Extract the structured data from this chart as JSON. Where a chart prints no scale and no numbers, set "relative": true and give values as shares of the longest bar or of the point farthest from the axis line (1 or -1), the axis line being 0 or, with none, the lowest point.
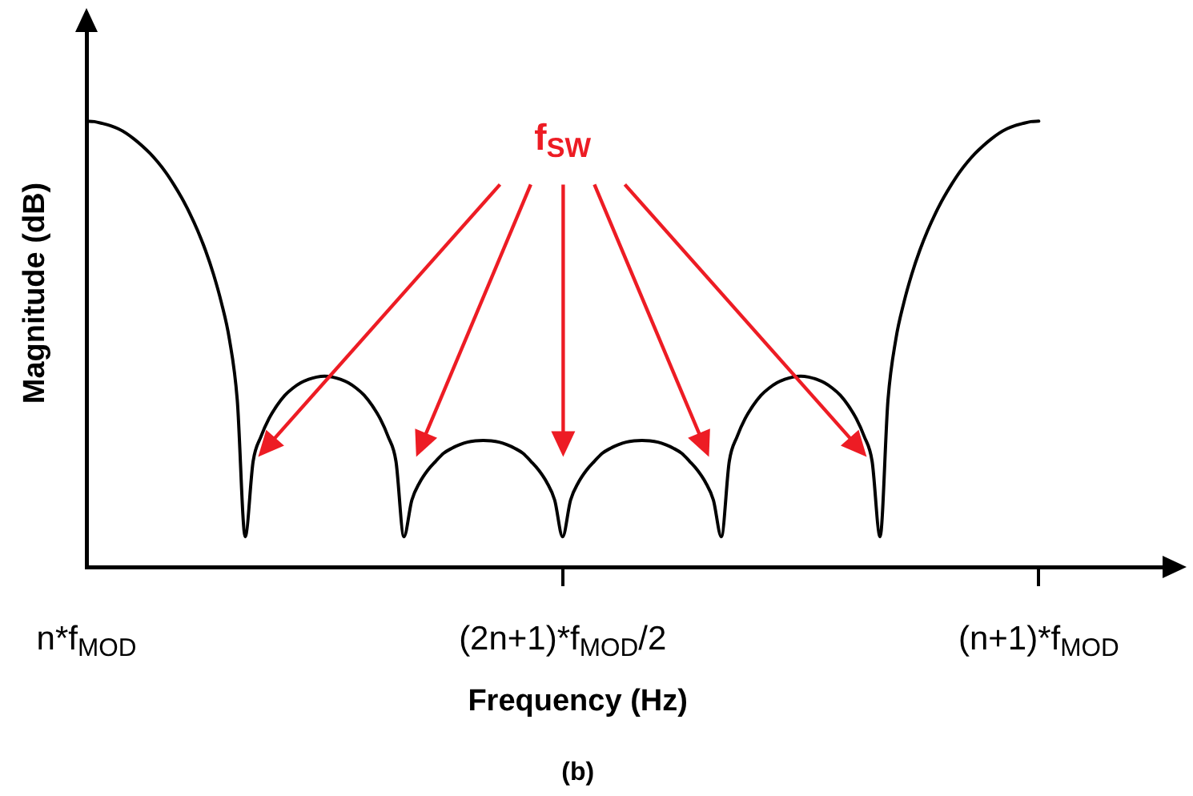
{
  "chart_data": {
    "type": "line",
    "xlabel": "Frequency (Hz)",
    "ylabel": "Magnitude (dB)",
    "relative": true,
    "annotations": [
      "f$_{SW}$",
      "(b)"
    ],
    "categories": [
      "n*f$_{MOD}$",
      null,
      null,
      null,
      null,
      null,
      null,
      null,
      null,
      null,
      null,
      null,
      null,
      null,
      null,
      null,
      null,
      null,
      null,
      null,
      null,
      null,
      null,
      null,
      null,
      null,
      null,
      null,
      null,
      null,
      null,
      null,
      null,
      null,
      null,
      null,
      null,
      null,
      null,
      null,
      null,
      null,
      null,
      null,
      null,
      null,
      null,
      null,
      null,
      null,
      null,
      null,
      null,
      null,
      null,
      null,
      null,
      null,
      null,
      null,
      "(2n+1)*f$_{MOD}$/2",
      null,
      null,
      null,
      null,
      null,
      null,
      null,
      null,
      null,
      null,
      null,
      null,
      null,
      null,
      null,
      null,
      null,
      null,
      null,
      null,
      null,
      null,
      null,
      null,
      null,
      null,
      null,
      null,
      null,
      null,
      null,
      null,
      null,
      null,
      null,
      null,
      null,
      null,
      null,
      null,
      null,
      null,
      null,
      null,
      null,
      null,
      null,
      null,
      null,
      null,
      null,
      null,
      null,
      null,
      null,
      null,
      null,
      null,
      null,
      "(n+1)*f$_{MOD}$"
    ],
    "series": [
      {
        "color": "#000000",
        "values": [
          1.0,
          0.999,
          0.995,
          0.99,
          0.983,
          0.973,
          0.96,
          0.945,
          0.928,
          0.908,
          0.885,
          0.858,
          0.828,
          0.794,
          0.755,
          0.71,
          0.657,
          0.593,
          0.512,
          0.375,
          0.068,
          0.237,
          0.293,
          0.333,
          0.362,
          0.385,
          0.401,
          0.413,
          0.421,
          0.426,
          0.428,
          0.426,
          0.421,
          0.413,
          0.401,
          0.385,
          0.362,
          0.333,
          0.293,
          0.237,
          0.068,
          0.15,
          0.19,
          0.217,
          0.237,
          0.255,
          0.266,
          0.274,
          0.28,
          0.283,
          0.284,
          0.283,
          0.28,
          0.274,
          0.266,
          0.255,
          0.237,
          0.217,
          0.19,
          0.15,
          0.068,
          0.15,
          0.19,
          0.217,
          0.237,
          0.255,
          0.266,
          0.274,
          0.28,
          0.283,
          0.284,
          0.283,
          0.28,
          0.274,
          0.266,
          0.255,
          0.237,
          0.217,
          0.19,
          0.15,
          0.068,
          0.237,
          0.293,
          0.333,
          0.362,
          0.385,
          0.401,
          0.413,
          0.421,
          0.426,
          0.428,
          0.426,
          0.421,
          0.413,
          0.401,
          0.385,
          0.362,
          0.333,
          0.293,
          0.237,
          0.068,
          0.375,
          0.512,
          0.593,
          0.657,
          0.71,
          0.755,
          0.794,
          0.828,
          0.858,
          0.885,
          0.908,
          0.928,
          0.945,
          0.96,
          0.973,
          0.983,
          0.99,
          0.995,
          0.999,
          1.0
        ]
      }
    ]
  }
}
